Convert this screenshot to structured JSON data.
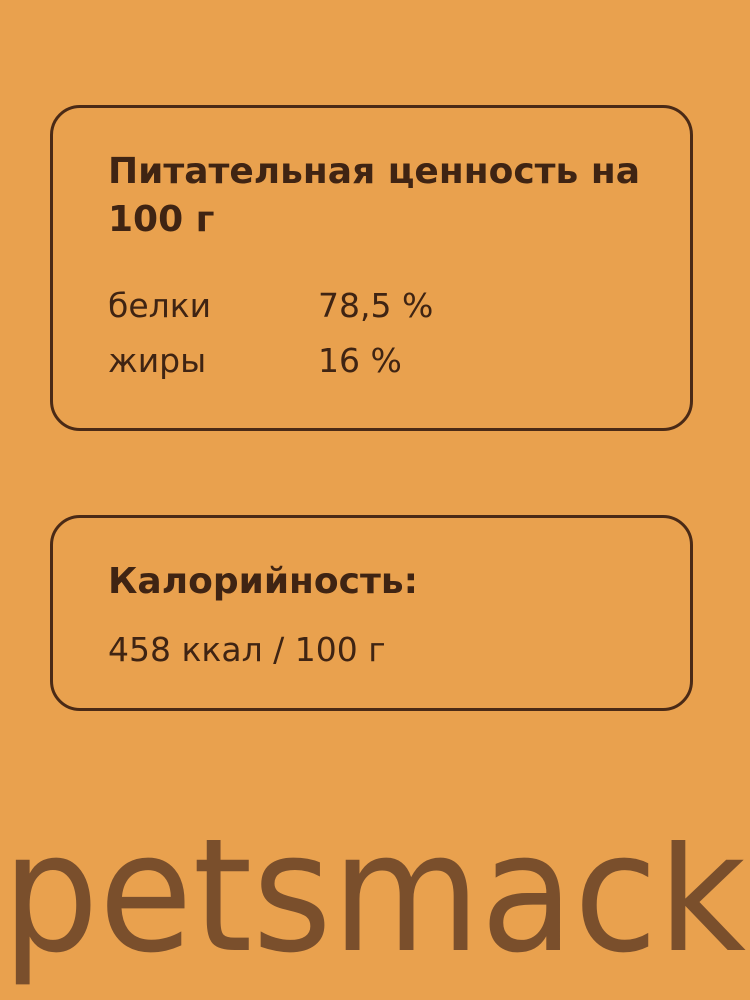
{
  "nutrition": {
    "title": "Питательная ценность на 100 г",
    "rows": [
      [
        "белки",
        "78,5 %"
      ],
      [
        "жиры",
        "16 %"
      ]
    ]
  },
  "calories": {
    "title": "Калорийность:",
    "value": "458 ккал / 100 г"
  },
  "brand": "petsmack"
}
